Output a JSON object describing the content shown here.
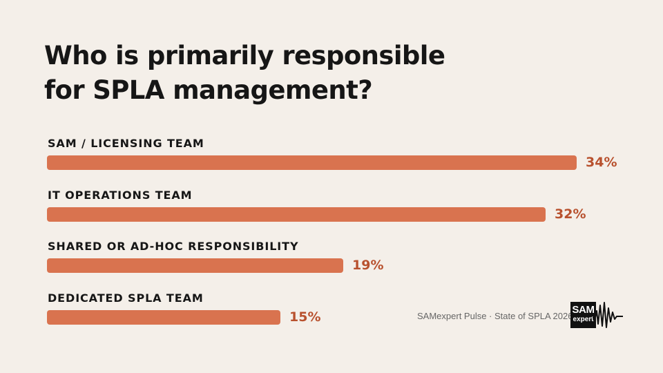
{
  "title": "Who is primarily responsible for SPLA management?",
  "chart_data": {
    "type": "bar",
    "orientation": "horizontal",
    "categories": [
      "SAM / LICENSING TEAM",
      "IT OPERATIONS TEAM",
      "SHARED OR AD-HOC RESPONSIBILITY",
      "DEDICATED SPLA TEAM"
    ],
    "values": [
      34,
      32,
      19,
      15
    ],
    "value_labels": [
      "34%",
      "32%",
      "19%",
      "15%"
    ],
    "unit": "%",
    "title": "Who is primarily responsible for SPLA management?",
    "xlabel": "",
    "ylabel": "",
    "xlim": [
      0,
      34
    ],
    "grid": false,
    "legend": "none",
    "bar_color": "#d9734f",
    "value_label_color": "#b8512e"
  },
  "footer": {
    "source": "SAMexpert Pulse · State of SPLA 2026"
  },
  "logo": {
    "line1": "SAM",
    "line2": "expert",
    "icon": "heartbeat-wave-icon"
  },
  "colors": {
    "background": "#f4efe9",
    "text": "#161616",
    "accent": "#d9734f"
  }
}
